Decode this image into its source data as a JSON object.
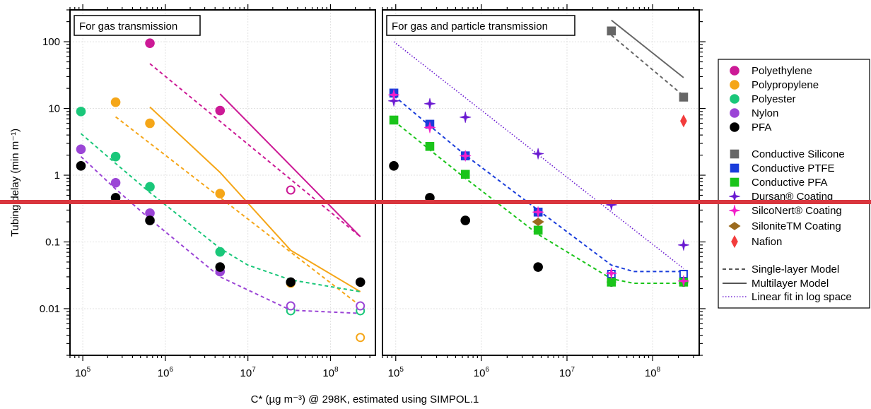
{
  "chart_data": {
    "type": "scatter",
    "x_scale": "log",
    "y_scale": "log",
    "xlabel": "C* (µg m⁻³) @ 298K, estimated using SIMPOL.1",
    "ylabel": "Tubing delay (min m⁻¹)",
    "xlim": [
      70000,
      350000000
    ],
    "ylim": [
      0.002,
      300
    ],
    "x_ticks": [
      "10^5",
      "10^6",
      "10^7",
      "10^8"
    ],
    "y_ticks": [
      "0.01",
      "0.1",
      "1",
      "10",
      "100"
    ],
    "grid": true,
    "legend_position": "right",
    "panels": [
      {
        "label": "For gas transmission",
        "series": [
          {
            "name": "Polyethylene",
            "color": "#cc1a96",
            "marker": "circle",
            "x": [
              650000,
              4600000,
              33000000,
              230000000
            ],
            "y": [
              95,
              9.3,
              0.6,
              0.025
            ]
          },
          {
            "name": "Polypropylene",
            "color": "#f5a618",
            "marker": "circle",
            "x": [
              250000,
              650000,
              4600000,
              33000000,
              230000000
            ],
            "y": [
              12.4,
              6,
              0.53,
              0.024,
              0.0037
            ]
          },
          {
            "name": "Polyester",
            "color": "#1ac77a",
            "marker": "circle",
            "x": [
              95000,
              250000,
              650000,
              4600000,
              33000000,
              230000000
            ],
            "y": [
              9,
              1.9,
              0.67,
              0.071,
              0.0093,
              0.0093
            ]
          },
          {
            "name": "Nylon",
            "color": "#9b45d6",
            "marker": "circle",
            "x": [
              95000,
              250000,
              650000,
              4600000,
              33000000,
              230000000
            ],
            "y": [
              2.45,
              0.77,
              0.27,
              0.036,
              0.011,
              0.011
            ]
          },
          {
            "name": "PFA",
            "color": "#000000",
            "marker": "circle",
            "x": [
              95000,
              250000,
              650000,
              4600000,
              33000000,
              230000000
            ],
            "y": [
              1.38,
              0.46,
              0.21,
              0.042,
              0.025,
              0.025
            ]
          }
        ],
        "models": [
          {
            "series": "Polyethylene",
            "style": "single-layer",
            "x": [
              650000,
              230000000
            ],
            "y": [
              47,
              0.12
            ]
          },
          {
            "series": "Polyethylene",
            "style": "multilayer",
            "x": [
              4600000,
              230000000
            ],
            "y": [
              16.5,
              0.12
            ]
          },
          {
            "series": "Polypropylene",
            "style": "single-layer",
            "x": [
              250000,
              230000000
            ],
            "y": [
              7.5,
              0.011
            ]
          },
          {
            "series": "Polypropylene",
            "style": "multilayer",
            "x": [
              650000,
              4600000,
              33000000,
              230000000
            ],
            "y": [
              10.5,
              1.1,
              0.075,
              0.018
            ]
          },
          {
            "series": "Polyester",
            "style": "single-layer",
            "x": [
              95000,
              250000,
              650000,
              4600000,
              10000000,
              33000000,
              230000000
            ],
            "y": [
              4.2,
              1.5,
              0.55,
              0.08,
              0.045,
              0.027,
              0.018
            ]
          },
          {
            "series": "Nylon",
            "style": "single-layer",
            "x": [
              95000,
              250000,
              650000,
              4600000,
              33000000,
              230000000
            ],
            "y": [
              1.9,
              0.62,
              0.22,
              0.03,
              0.0095,
              0.0085
            ]
          }
        ]
      },
      {
        "label": "For gas and particle transmission",
        "series": [
          {
            "name": "PFA",
            "color": "#000000",
            "marker": "circle",
            "x": [
              95000,
              250000,
              650000,
              4600000,
              33000000,
              230000000
            ],
            "y": [
              1.38,
              0.46,
              0.21,
              0.042,
              0.025,
              0.025
            ]
          },
          {
            "name": "Conductive Silicone",
            "color": "#666666",
            "marker": "square",
            "x": [
              33000000,
              230000000
            ],
            "y": [
              145,
              14.8
            ]
          },
          {
            "name": "Conductive PTFE",
            "color": "#1a3ddb",
            "marker": "square",
            "x": [
              95000,
              250000,
              650000,
              4600000,
              33000000,
              230000000
            ],
            "y": [
              17,
              5.8,
              1.95,
              0.28,
              0.033,
              0.033
            ]
          },
          {
            "name": "Conductive PFA",
            "color": "#1ac41a",
            "marker": "square",
            "x": [
              95000,
              250000,
              650000,
              4600000,
              33000000,
              230000000
            ],
            "y": [
              6.7,
              2.7,
              1.03,
              0.15,
              0.025,
              0.025
            ]
          },
          {
            "name": "Dursan® Coating",
            "color": "#6a1ad1",
            "marker": "star",
            "x": [
              95000,
              250000,
              650000,
              4600000,
              33000000,
              230000000
            ],
            "y": [
              13,
              11.8,
              7.4,
              2.1,
              0.36,
              0.09
            ]
          },
          {
            "name": "SilcoNert® Coating",
            "color": "#f21ec9",
            "marker": "star",
            "x": [
              95000,
              250000,
              650000,
              4600000,
              33000000,
              230000000
            ],
            "y": [
              16,
              5.2,
              1.95,
              0.28,
              0.034,
              0.026
            ]
          },
          {
            "name": "SiloniteTM Coating",
            "color": "#9b6a1e",
            "marker": "diamond",
            "x": [
              4600000
            ],
            "y": [
              0.2
            ]
          },
          {
            "name": "Nafion",
            "color": "#f23c3c",
            "marker": "thin-diamond",
            "x": [
              230000000
            ],
            "y": [
              6.5
            ]
          }
        ],
        "models": [
          {
            "series": "Conductive Silicone",
            "style": "single-layer",
            "x": [
              33000000,
              230000000
            ],
            "y": [
              125,
              15.5
            ]
          },
          {
            "series": "Conductive Silicone",
            "style": "multilayer",
            "x": [
              33000000,
              230000000
            ],
            "y": [
              210,
              29
            ]
          },
          {
            "series": "Conductive PTFE",
            "style": "single-layer",
            "x": [
              95000,
              250000,
              650000,
              4600000,
              33000000,
              60000000,
              230000000
            ],
            "y": [
              15.5,
              5.5,
              2,
              0.3,
              0.045,
              0.036,
              0.036
            ]
          },
          {
            "series": "Conductive PFA",
            "style": "single-layer",
            "x": [
              95000,
              250000,
              650000,
              4600000,
              33000000,
              60000000,
              230000000
            ],
            "y": [
              6.5,
              2.4,
              0.9,
              0.13,
              0.028,
              0.024,
              0.024
            ]
          },
          {
            "series": "Dursan® Coating",
            "style": "linear-fit",
            "x": [
              95000,
              230000000
            ],
            "y": [
              100,
              0.04
            ]
          }
        ]
      }
    ],
    "legend": {
      "markers": [
        {
          "label": "Polyethylene",
          "color": "#cc1a96",
          "marker": "circle"
        },
        {
          "label": "Polypropylene",
          "color": "#f5a618",
          "marker": "circle"
        },
        {
          "label": "Polyester",
          "color": "#1ac77a",
          "marker": "circle"
        },
        {
          "label": "Nylon",
          "color": "#9b45d6",
          "marker": "circle"
        },
        {
          "label": "PFA",
          "color": "#000000",
          "marker": "circle"
        },
        {
          "label": "Conductive Silicone",
          "color": "#666666",
          "marker": "square"
        },
        {
          "label": "Conductive PTFE",
          "color": "#1a3ddb",
          "marker": "square"
        },
        {
          "label": "Conductive PFA",
          "color": "#1ac41a",
          "marker": "square"
        },
        {
          "label": "Dursan® Coating",
          "color": "#6a1ad1",
          "marker": "star"
        },
        {
          "label": "SilcoNert® Coating",
          "color": "#f21ec9",
          "marker": "star"
        },
        {
          "label": "SiloniteTM Coating",
          "color": "#9b6a1e",
          "marker": "diamond"
        },
        {
          "label": "Nafion",
          "color": "#f23c3c",
          "marker": "thin-diamond"
        }
      ],
      "lines": [
        {
          "label": "Single-layer Model",
          "style": "single-layer"
        },
        {
          "label": "Multilayer Model",
          "style": "multilayer"
        },
        {
          "label": "Linear fit in log space",
          "style": "linear-fit"
        }
      ]
    },
    "overlay_line_color": "#d9363e"
  }
}
